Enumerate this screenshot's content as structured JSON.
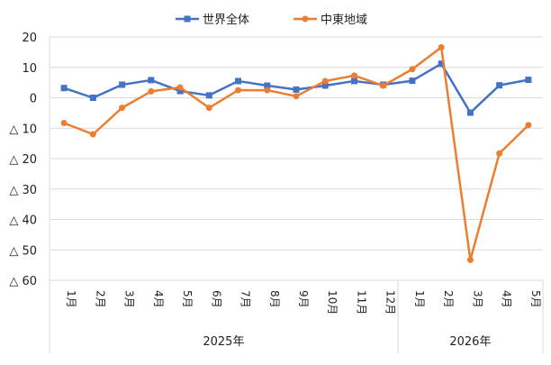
{
  "chart_data": {
    "type": "line",
    "title": "",
    "xlabel": "",
    "ylabel": "",
    "ylim": [
      -60,
      20
    ],
    "y_ticks": [
      {
        "value": 20,
        "label": "20"
      },
      {
        "value": 10,
        "label": "10"
      },
      {
        "value": 0,
        "label": "0"
      },
      {
        "value": -10,
        "label": "△ 10"
      },
      {
        "value": -20,
        "label": "△ 20"
      },
      {
        "value": -30,
        "label": "△ 30"
      },
      {
        "value": -40,
        "label": "△ 40"
      },
      {
        "value": -50,
        "label": "△ 50"
      },
      {
        "value": -60,
        "label": "△ 60"
      }
    ],
    "categories": [
      "1月",
      "2月",
      "3月",
      "4月",
      "5月",
      "6月",
      "7月",
      "8月",
      "9月",
      "10月",
      "11月",
      "12月",
      "1月",
      "2月",
      "3月",
      "4月",
      "5月"
    ],
    "year_groups": [
      {
        "label": "2025年",
        "count": 12
      },
      {
        "label": "2026年",
        "count": 5
      }
    ],
    "grid": true,
    "legend_position": "top-center",
    "series": [
      {
        "name": "世界全体",
        "color": "#4472c4",
        "marker": "square",
        "values": [
          3.2,
          0.0,
          4.3,
          5.8,
          2.2,
          0.8,
          5.5,
          4.0,
          2.7,
          4.0,
          5.5,
          4.3,
          5.6,
          11.2,
          -4.9,
          4.1,
          5.9
        ]
      },
      {
        "name": "中東地域",
        "color": "#ed7d31",
        "marker": "circle",
        "values": [
          -8.3,
          -12.0,
          -3.3,
          2.1,
          3.4,
          -3.3,
          2.5,
          2.5,
          0.5,
          5.5,
          7.3,
          4.0,
          9.4,
          16.6,
          -53.3,
          -18.3,
          -9.0
        ]
      }
    ]
  }
}
